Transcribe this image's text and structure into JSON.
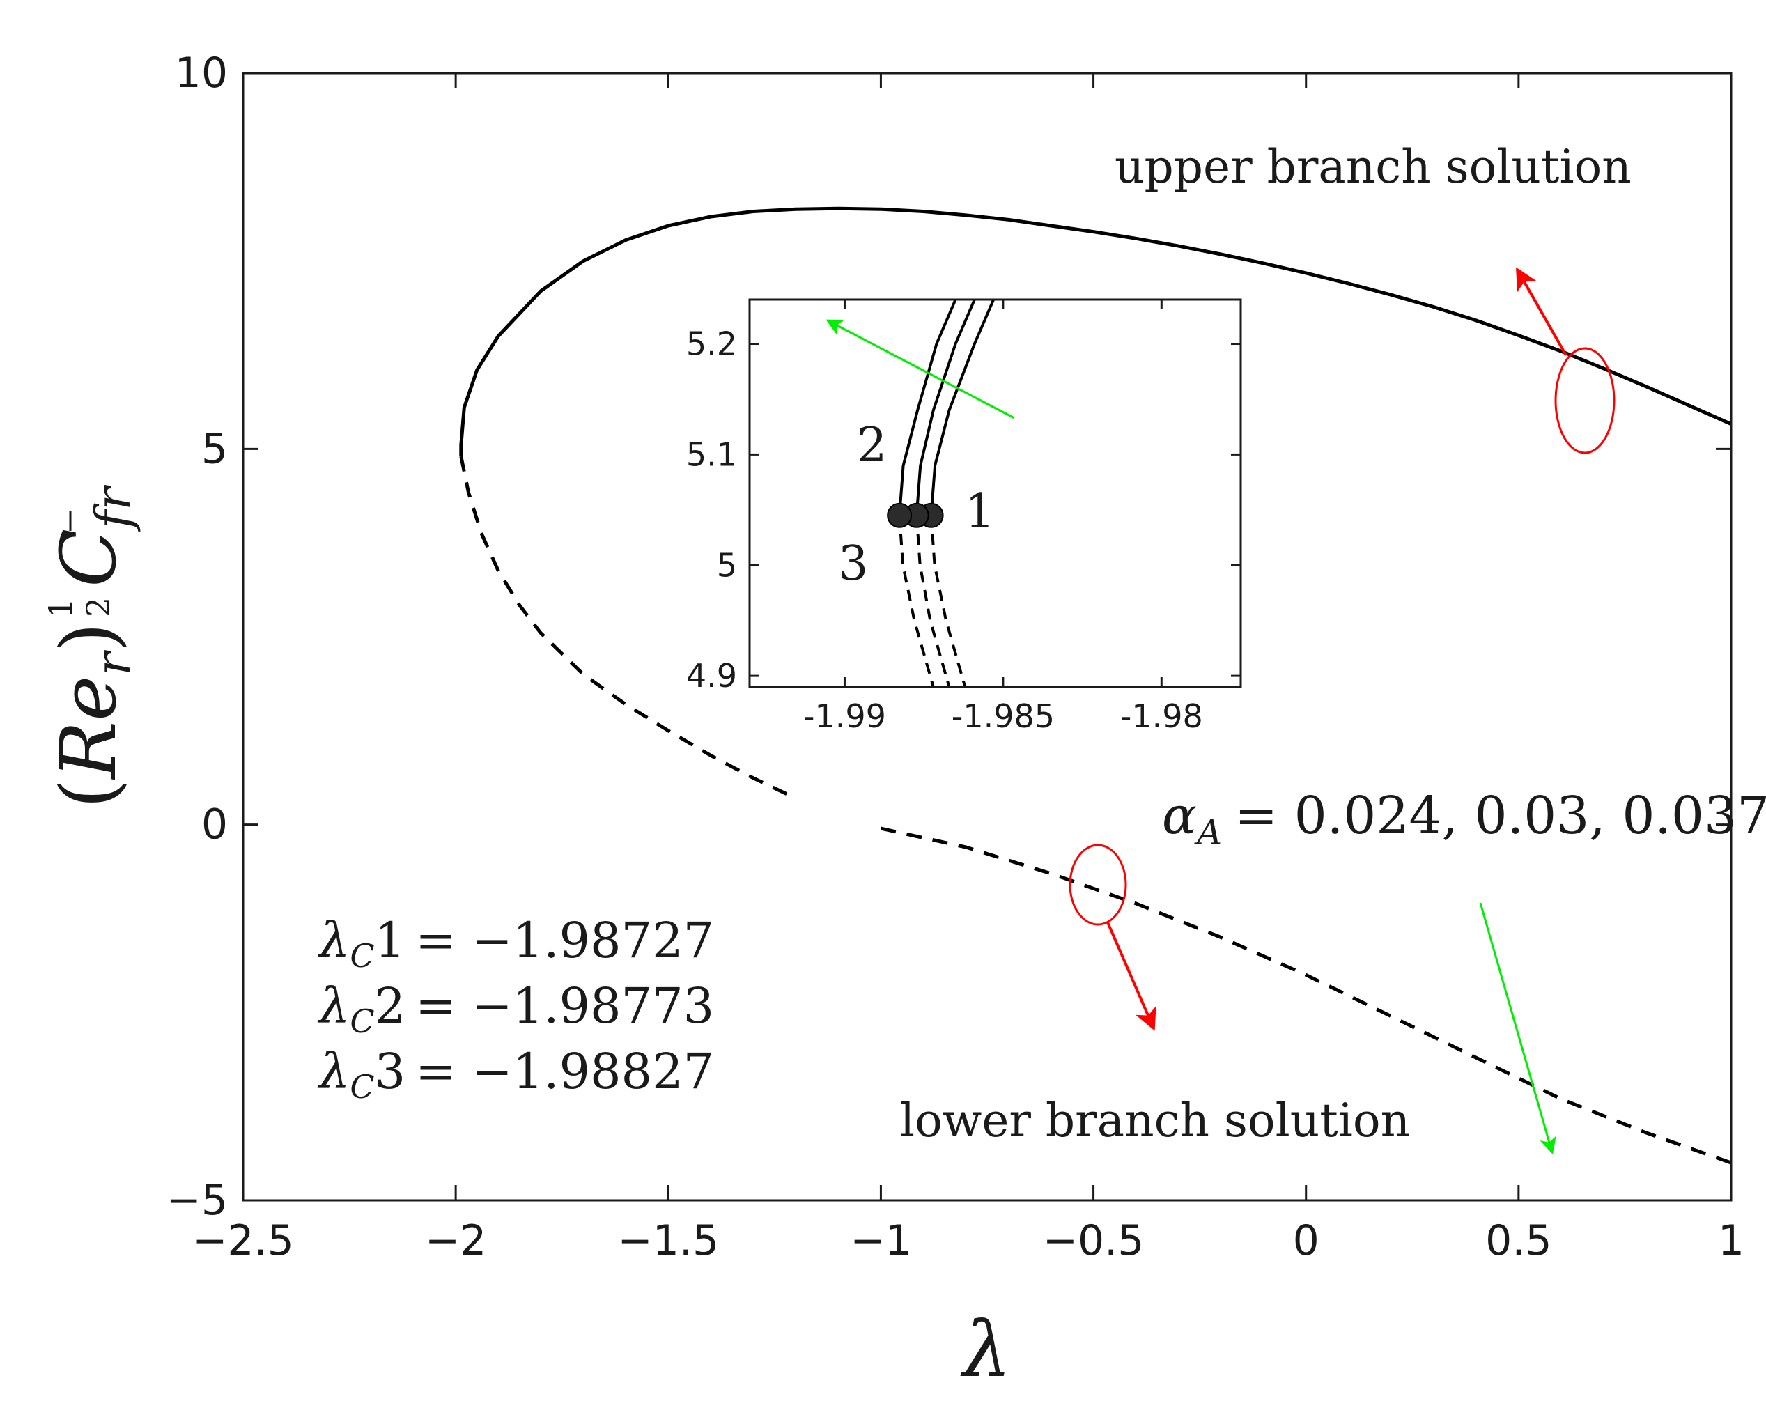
{
  "chart_data": [
    {
      "type": "line",
      "role": "main",
      "xlabel": "λ",
      "ylabel": {
        "open": "(",
        "base": "Re",
        "base_sub": "r",
        "close": ")",
        "exp_num": "1",
        "exp_den": "2",
        "main": "C",
        "main_sub": "fr"
      },
      "xlim": [
        -2.5,
        1
      ],
      "ylim": [
        -5,
        10
      ],
      "xticks": [
        -2.5,
        -2,
        -1.5,
        -1,
        -0.5,
        0,
        0.5,
        1
      ],
      "yticks": [
        -5,
        0,
        5,
        10
      ],
      "xtick_labels": [
        "−2.5",
        "−2",
        "−1.5",
        "−1",
        "−0.5",
        "0",
        "0.5",
        "1"
      ],
      "ytick_labels": [
        "−5",
        "0",
        "5",
        "10"
      ],
      "grid": false,
      "series": [
        {
          "name": "upper branch solution",
          "style": "solid",
          "x": [
            -1.9874,
            -1.9874,
            -1.98,
            -1.95,
            -1.9,
            -1.8,
            -1.7,
            -1.6,
            -1.5,
            -1.4,
            -1.3,
            -1.2,
            -1.1,
            -1.0,
            -0.9,
            -0.8,
            -0.7,
            -0.6,
            -0.5,
            -0.4,
            -0.3,
            -0.2,
            -0.1,
            0,
            0.1,
            0.2,
            0.3,
            0.4,
            0.5,
            0.6,
            0.7,
            0.8,
            0.9,
            1.0
          ],
          "y": [
            4.9,
            5.05,
            5.55,
            6.05,
            6.5,
            7.1,
            7.5,
            7.78,
            7.97,
            8.09,
            8.16,
            8.19,
            8.2,
            8.19,
            8.16,
            8.11,
            8.05,
            7.97,
            7.89,
            7.8,
            7.7,
            7.59,
            7.47,
            7.34,
            7.2,
            7.05,
            6.89,
            6.71,
            6.51,
            6.3,
            6.07,
            5.83,
            5.58,
            5.33
          ]
        },
        {
          "name": "lower branch solution (λ < −1.2)",
          "style": "dashed",
          "x": [
            -1.9874,
            -1.97,
            -1.94,
            -1.9,
            -1.85,
            -1.8,
            -1.7,
            -1.6,
            -1.5,
            -1.4,
            -1.3,
            -1.2
          ],
          "y": [
            4.9,
            4.42,
            3.88,
            3.38,
            2.92,
            2.55,
            2.0,
            1.6,
            1.25,
            0.92,
            0.62,
            0.35
          ]
        },
        {
          "name": "lower branch solution (λ ≥ −1)",
          "style": "dashed",
          "x": [
            -1.0,
            -0.8,
            -0.6,
            -0.4,
            -0.2,
            0,
            0.2,
            0.4,
            0.6,
            0.8,
            1.0
          ],
          "y": [
            -0.05,
            -0.3,
            -0.65,
            -1.05,
            -1.5,
            -2.0,
            -2.55,
            -3.1,
            -3.65,
            -4.1,
            -4.5
          ]
        }
      ],
      "annotations": {
        "upper_label": "upper branch solution",
        "lower_label": "lower branch solution",
        "alpha_symbol": "α",
        "alpha_sub": "A",
        "alpha_values": "= 0.024, 0.03, 0.037",
        "critical": [
          {
            "sym": "λ",
            "sub": "C",
            "idx": "1",
            "val": "= −1.98727"
          },
          {
            "sym": "λ",
            "sub": "C",
            "idx": "2",
            "val": "= −1.98773"
          },
          {
            "sym": "λ",
            "sub": "C",
            "idx": "3",
            "val": "= −1.98827"
          }
        ],
        "arrow_color_increase": "#ff0000",
        "arrow_color_green": "#00ee00"
      }
    },
    {
      "type": "line",
      "role": "inset",
      "xlim": [
        -1.993,
        -1.9775
      ],
      "ylim": [
        4.89,
        5.24
      ],
      "xticks": [
        -1.99,
        -1.985,
        -1.98
      ],
      "yticks": [
        4.9,
        5,
        5.1,
        5.2
      ],
      "xtick_labels": [
        "-1.99",
        "-1.985",
        "-1.98"
      ],
      "ytick_labels": [
        "4.9",
        "5",
        "5.1",
        "5.2"
      ],
      "curve_labels": [
        "1",
        "2",
        "3"
      ],
      "critical_points": [
        {
          "x": -1.98727,
          "y": 5.045
        },
        {
          "x": -1.98773,
          "y": 5.045
        },
        {
          "x": -1.98827,
          "y": 5.045
        }
      ],
      "series": [
        {
          "name": "α_A = 0.024 upper",
          "style": "solid",
          "x": [
            -1.98727,
            -1.98715,
            -1.9867,
            -1.9859,
            -1.9853
          ],
          "y": [
            5.045,
            5.09,
            5.14,
            5.2,
            5.24
          ]
        },
        {
          "name": "α_A = 0.024 lower",
          "style": "dashed",
          "x": [
            -1.98727,
            -1.98716,
            -1.9868,
            -1.9862
          ],
          "y": [
            5.045,
            5.0,
            4.95,
            4.89
          ]
        },
        {
          "name": "α_A = 0.03 upper",
          "style": "solid",
          "x": [
            -1.98773,
            -1.98761,
            -1.9872,
            -1.9865,
            -1.9859
          ],
          "y": [
            5.045,
            5.09,
            5.14,
            5.2,
            5.24
          ]
        },
        {
          "name": "α_A = 0.03 lower",
          "style": "dashed",
          "x": [
            -1.98773,
            -1.98762,
            -1.9873,
            -1.9867
          ],
          "y": [
            5.045,
            5.0,
            4.95,
            4.89
          ]
        },
        {
          "name": "α_A = 0.037 upper",
          "style": "solid",
          "x": [
            -1.98827,
            -1.98815,
            -1.9877,
            -1.9871,
            -1.9865
          ],
          "y": [
            5.045,
            5.09,
            5.14,
            5.2,
            5.24
          ]
        },
        {
          "name": "α_A = 0.037 lower",
          "style": "dashed",
          "x": [
            -1.98827,
            -1.98816,
            -1.9878,
            -1.9872
          ],
          "y": [
            5.045,
            5.0,
            4.95,
            4.89
          ]
        }
      ]
    }
  ]
}
